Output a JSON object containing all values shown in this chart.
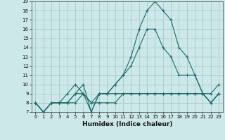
{
  "title": "",
  "xlabel": "Humidex (Indice chaleur)",
  "ylabel": "",
  "background_color": "#cde8e8",
  "grid_color": "#aacece",
  "line_color": "#1a6b6b",
  "xlim": [
    -0.5,
    23.5
  ],
  "ylim": [
    7,
    19
  ],
  "xticks": [
    0,
    1,
    2,
    3,
    4,
    5,
    6,
    7,
    8,
    9,
    10,
    11,
    12,
    13,
    14,
    15,
    16,
    17,
    18,
    19,
    20,
    21,
    22,
    23
  ],
  "yticks": [
    7,
    8,
    9,
    10,
    11,
    12,
    13,
    14,
    15,
    16,
    17,
    18,
    19
  ],
  "series": [
    [
      8,
      7,
      8,
      8,
      8,
      9,
      10,
      7,
      9,
      9,
      10,
      11,
      13,
      16,
      18,
      19,
      18,
      17,
      14,
      13,
      11,
      9,
      9,
      10
    ],
    [
      8,
      7,
      8,
      8,
      8,
      8,
      9,
      8,
      8,
      8,
      8,
      9,
      9,
      9,
      9,
      9,
      9,
      9,
      9,
      9,
      9,
      9,
      8,
      9
    ],
    [
      8,
      7,
      8,
      8,
      8,
      9,
      9,
      8,
      9,
      9,
      9,
      9,
      9,
      9,
      9,
      9,
      9,
      9,
      9,
      9,
      9,
      9,
      8,
      9
    ],
    [
      8,
      7,
      8,
      8,
      9,
      10,
      9,
      7,
      9,
      9,
      10,
      11,
      12,
      14,
      16,
      16,
      14,
      13,
      11,
      11,
      11,
      9,
      8,
      9
    ]
  ]
}
